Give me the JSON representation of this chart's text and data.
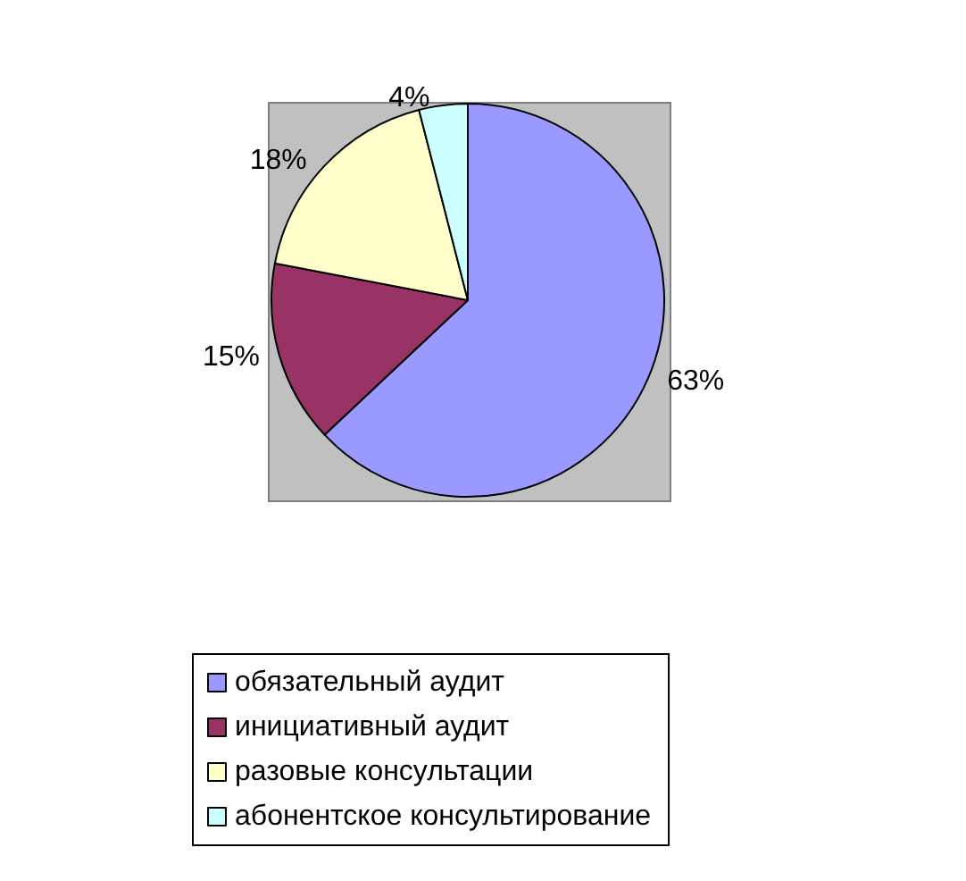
{
  "chart_data": {
    "type": "pie",
    "categories": [
      "обязательный аудит",
      "инициативный аудит",
      "разовые консультации",
      "абонентское консультирование"
    ],
    "values": [
      63,
      15,
      18,
      4
    ],
    "colors": [
      "#9999ff",
      "#993366",
      "#ffffcc",
      "#ccffff"
    ],
    "value_labels": [
      "63%",
      "15%",
      "18%",
      "4%"
    ],
    "legend": "bottom"
  }
}
